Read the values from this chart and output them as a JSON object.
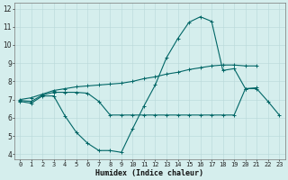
{
  "xlabel": "Humidex (Indice chaleur)",
  "x": [
    0,
    1,
    2,
    3,
    4,
    5,
    6,
    7,
    8,
    9,
    10,
    11,
    12,
    13,
    14,
    15,
    16,
    17,
    18,
    19,
    20,
    21,
    22,
    23
  ],
  "curve1": [
    6.9,
    6.8,
    7.2,
    7.2,
    6.1,
    5.2,
    4.6,
    4.2,
    4.2,
    4.1,
    5.4,
    6.65,
    7.8,
    9.3,
    10.35,
    11.25,
    11.55,
    11.3,
    8.6,
    8.7,
    7.6,
    7.6,
    6.9,
    6.15
  ],
  "curve2_x": [
    0,
    1,
    2,
    3,
    4,
    5,
    6,
    7,
    8,
    9,
    10,
    11,
    12,
    13,
    14,
    15,
    16,
    17,
    18,
    19,
    20,
    21
  ],
  "curve2_y": [
    6.95,
    6.9,
    7.25,
    7.4,
    7.4,
    7.4,
    7.35,
    6.9,
    6.15,
    6.15,
    6.15,
    6.15,
    6.15,
    6.15,
    6.15,
    6.15,
    6.15,
    6.15,
    6.15,
    6.15,
    7.6,
    7.65
  ],
  "curve3_x": [
    0,
    1,
    2,
    3,
    4,
    5,
    6,
    7,
    8,
    9,
    10,
    11,
    12,
    13,
    14,
    15,
    16,
    17,
    18,
    19,
    20,
    21
  ],
  "curve3_y": [
    7.0,
    7.1,
    7.3,
    7.5,
    7.6,
    7.7,
    7.75,
    7.8,
    7.85,
    7.9,
    8.0,
    8.15,
    8.25,
    8.4,
    8.5,
    8.65,
    8.75,
    8.85,
    8.9,
    8.9,
    8.85,
    8.85
  ],
  "line_color": "#006666",
  "bg_color": "#d5eeed",
  "grid_color": "#b8d8d8",
  "ylim": [
    3.7,
    12.3
  ],
  "xlim": [
    -0.5,
    23.5
  ],
  "yticks": [
    4,
    5,
    6,
    7,
    8,
    9,
    10,
    11,
    12
  ],
  "xticks": [
    0,
    1,
    2,
    3,
    4,
    5,
    6,
    7,
    8,
    9,
    10,
    11,
    12,
    13,
    14,
    15,
    16,
    17,
    18,
    19,
    20,
    21,
    22,
    23
  ],
  "xlabel_fontsize": 6,
  "tick_fontsize": 5
}
